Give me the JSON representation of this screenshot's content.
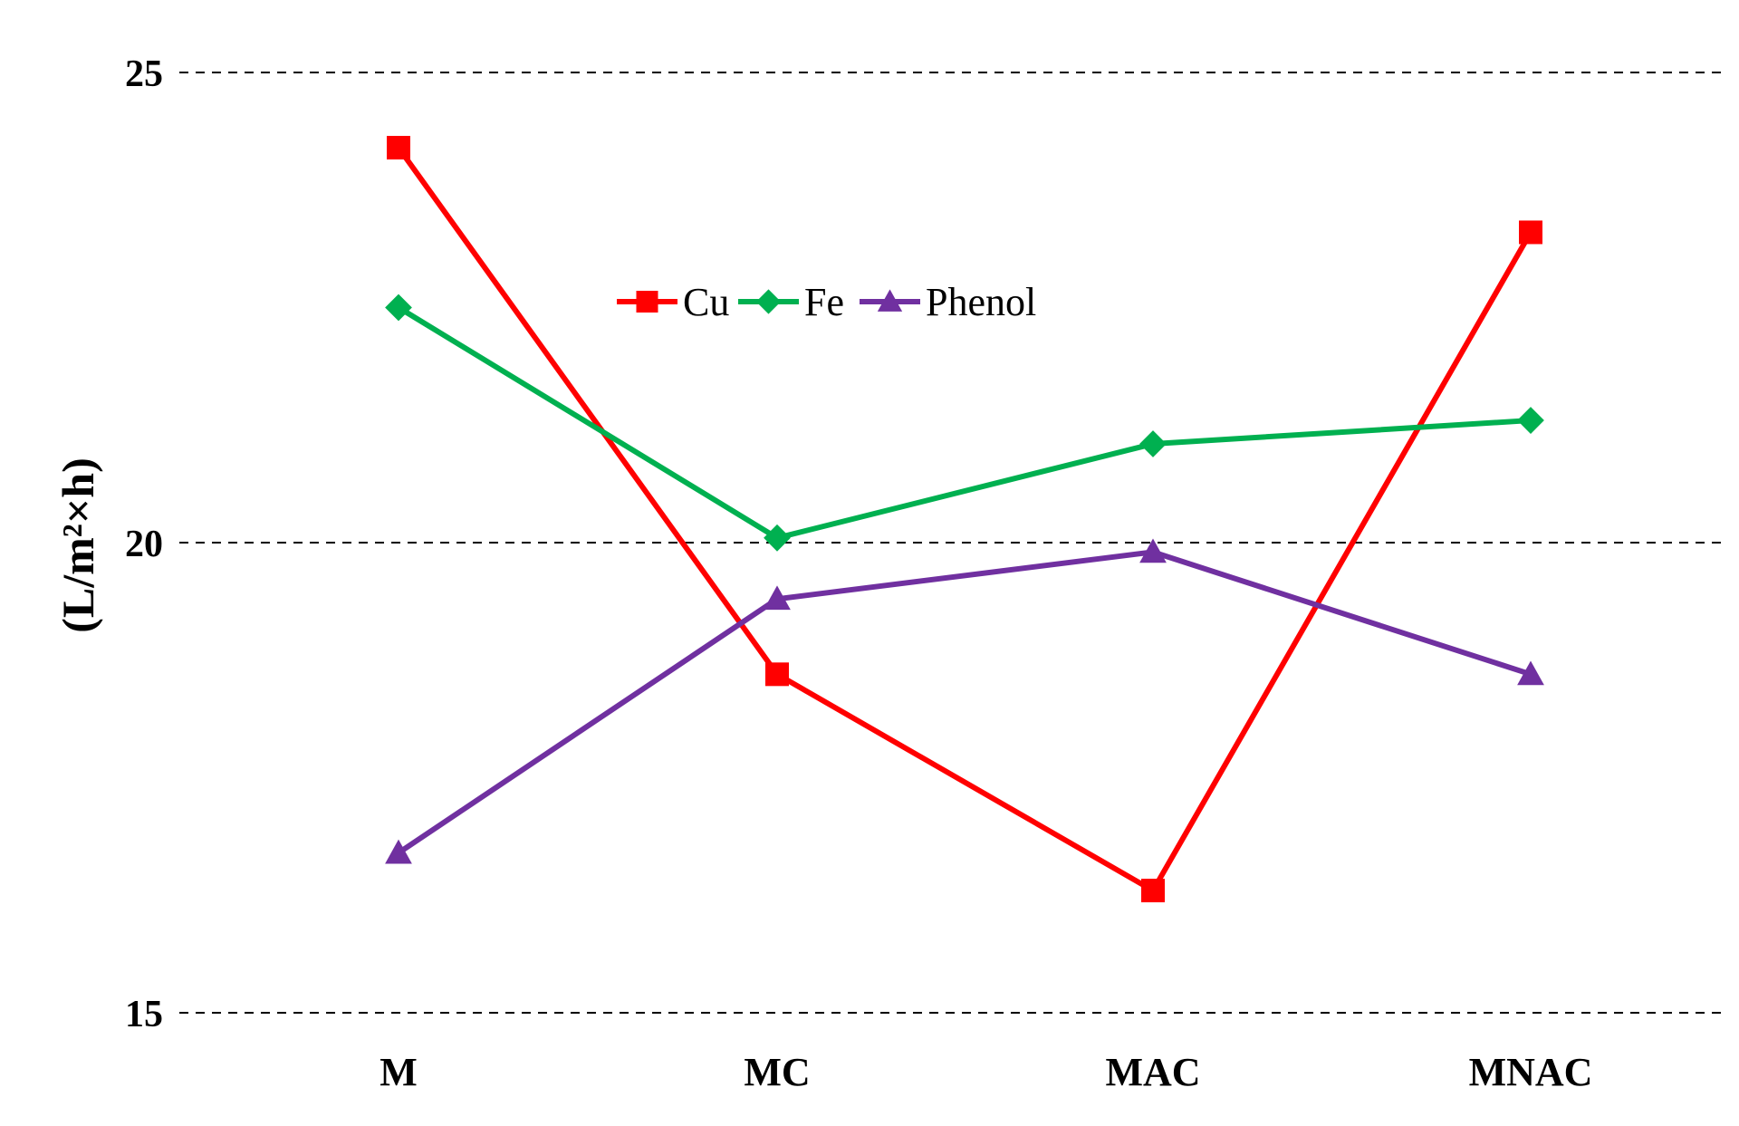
{
  "chart_data": {
    "type": "line",
    "categories": [
      "M",
      "MC",
      "MAC",
      "MNAC"
    ],
    "series": [
      {
        "name": "Cu",
        "values": [
          24.2,
          18.6,
          16.3,
          23.3
        ],
        "color": "#ff0000",
        "marker": "square"
      },
      {
        "name": "Fe",
        "values": [
          22.5,
          20.05,
          21.05,
          21.3
        ],
        "color": "#00b050",
        "marker": "diamond"
      },
      {
        "name": "Phenol",
        "values": [
          16.7,
          19.4,
          19.9,
          18.6
        ],
        "color": "#7030a0",
        "marker": "triangle"
      }
    ],
    "ylabel": "(L/m²×h)",
    "xlabel": "",
    "ylim": [
      15,
      25
    ],
    "yticks": [
      "15",
      "20",
      "25"
    ],
    "grid": "dashed-horizontal",
    "legend": "top-center"
  }
}
